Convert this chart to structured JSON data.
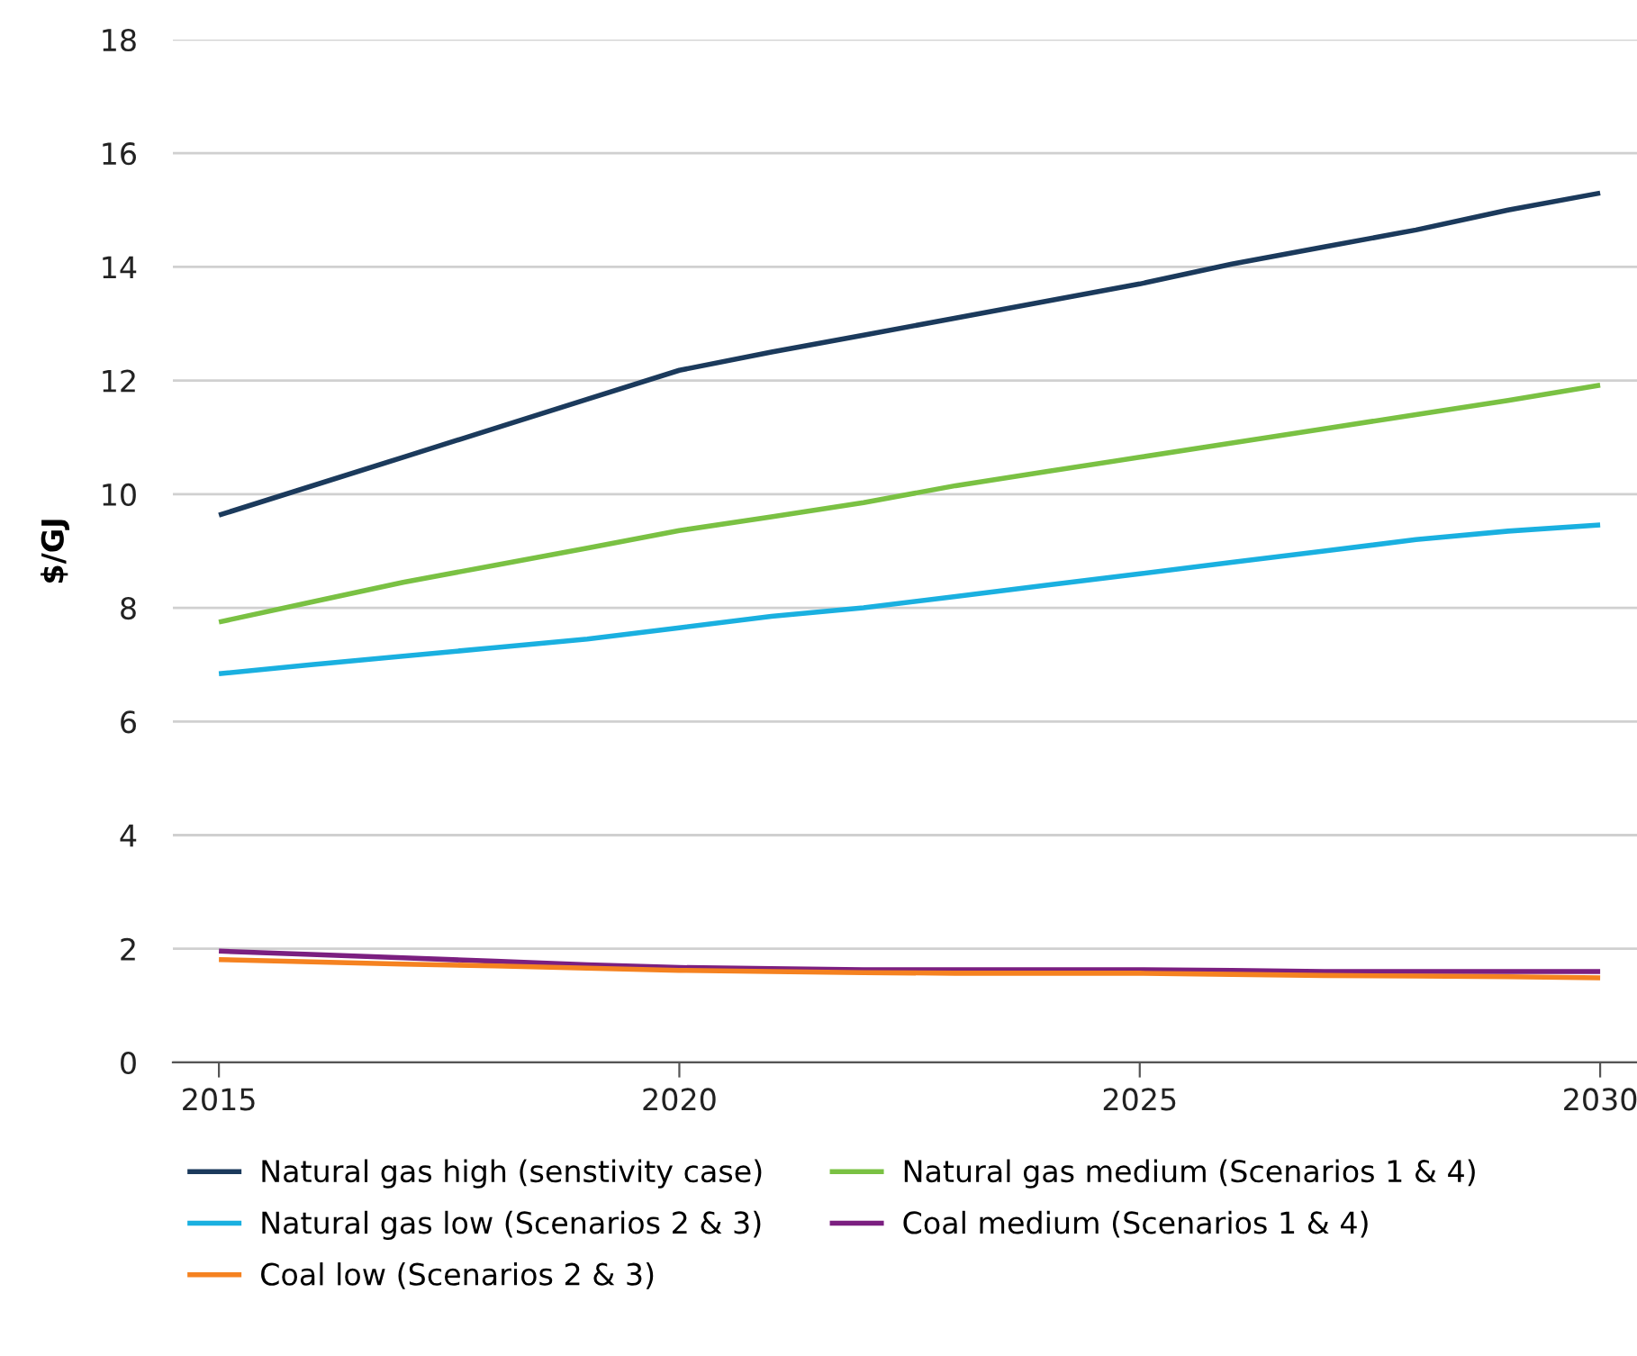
{
  "chart_data": {
    "type": "line",
    "ylabel": "$/GJ",
    "x": [
      2015,
      2016,
      2017,
      2018,
      2019,
      2020,
      2021,
      2022,
      2023,
      2024,
      2025,
      2026,
      2027,
      2028,
      2029,
      2030
    ],
    "xlim": [
      2014.5,
      2030.4
    ],
    "xticks": [
      2015,
      2020,
      2025,
      2030
    ],
    "ylim": [
      0,
      18
    ],
    "yticks": [
      0,
      2,
      4,
      6,
      8,
      10,
      12,
      14,
      16,
      18
    ],
    "grid": "y",
    "legend": "bottom",
    "marker": "none",
    "line_style": "solid",
    "series": [
      {
        "name": "Natural gas high (senstivity case)",
        "color": "#1b3a5c",
        "values": [
          9.63,
          10.14,
          10.65,
          11.16,
          11.67,
          12.18,
          12.5,
          12.8,
          13.1,
          13.4,
          13.7,
          14.05,
          14.35,
          14.65,
          15.0,
          15.3
        ]
      },
      {
        "name": "Natural gas medium (Scenarios 1 & 4)",
        "color": "#7ac143",
        "values": [
          7.75,
          8.1,
          8.45,
          8.75,
          9.05,
          9.36,
          9.6,
          9.85,
          10.15,
          10.4,
          10.65,
          10.9,
          11.15,
          11.4,
          11.65,
          11.92
        ]
      },
      {
        "name": "Natural gas low (Scenarios 2 & 3)",
        "color": "#1ab0e0",
        "values": [
          6.84,
          7.0,
          7.15,
          7.3,
          7.45,
          7.65,
          7.85,
          8.0,
          8.2,
          8.4,
          8.6,
          8.8,
          9.0,
          9.2,
          9.35,
          9.46
        ]
      },
      {
        "name": "Coal medium (Scenarios 1 & 4)",
        "color": "#7b1f80",
        "values": [
          1.96,
          1.9,
          1.84,
          1.78,
          1.72,
          1.67,
          1.65,
          1.63,
          1.63,
          1.63,
          1.63,
          1.62,
          1.6,
          1.6,
          1.6,
          1.6
        ]
      },
      {
        "name": "Coal low (Scenarios 2 & 3)",
        "color": "#f58220",
        "values": [
          1.81,
          1.77,
          1.73,
          1.7,
          1.66,
          1.62,
          1.6,
          1.58,
          1.57,
          1.57,
          1.57,
          1.55,
          1.53,
          1.52,
          1.51,
          1.49
        ]
      }
    ]
  }
}
